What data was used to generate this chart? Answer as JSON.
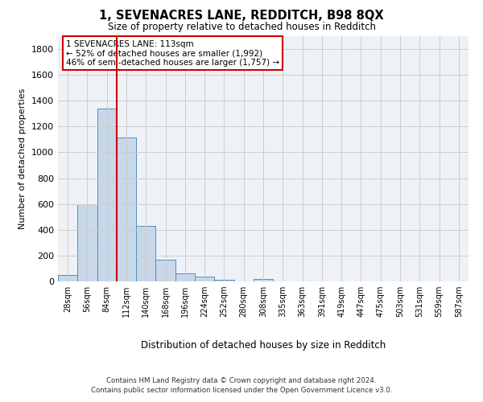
{
  "title_line1": "1, SEVENACRES LANE, REDDITCH, B98 8QX",
  "title_line2": "Size of property relative to detached houses in Redditch",
  "xlabel": "Distribution of detached houses by size in Redditch",
  "ylabel": "Number of detached properties",
  "footer": "Contains HM Land Registry data © Crown copyright and database right 2024.\nContains public sector information licensed under the Open Government Licence v3.0.",
  "bin_labels": [
    "28sqm",
    "56sqm",
    "84sqm",
    "112sqm",
    "140sqm",
    "168sqm",
    "196sqm",
    "224sqm",
    "252sqm",
    "280sqm",
    "308sqm",
    "335sqm",
    "363sqm",
    "391sqm",
    "419sqm",
    "447sqm",
    "475sqm",
    "503sqm",
    "531sqm",
    "559sqm",
    "587sqm"
  ],
  "bar_values": [
    50,
    595,
    1340,
    1115,
    430,
    170,
    60,
    37,
    13,
    0,
    18,
    0,
    0,
    0,
    0,
    0,
    0,
    0,
    0,
    0,
    0
  ],
  "bar_color": "#c8d8e8",
  "bar_edge_color": "#4a90c4",
  "vline_bin_index": 2.5,
  "annotation_box_text": "1 SEVENACRES LANE: 113sqm\n← 52% of detached houses are smaller (1,992)\n46% of semi-detached houses are larger (1,757) →",
  "ylim": [
    0,
    1900
  ],
  "yticks": [
    0,
    200,
    400,
    600,
    800,
    1000,
    1200,
    1400,
    1600,
    1800
  ],
  "grid_color": "#cccccc",
  "bg_color": "#eef2f7",
  "vline_color": "#cc0000"
}
